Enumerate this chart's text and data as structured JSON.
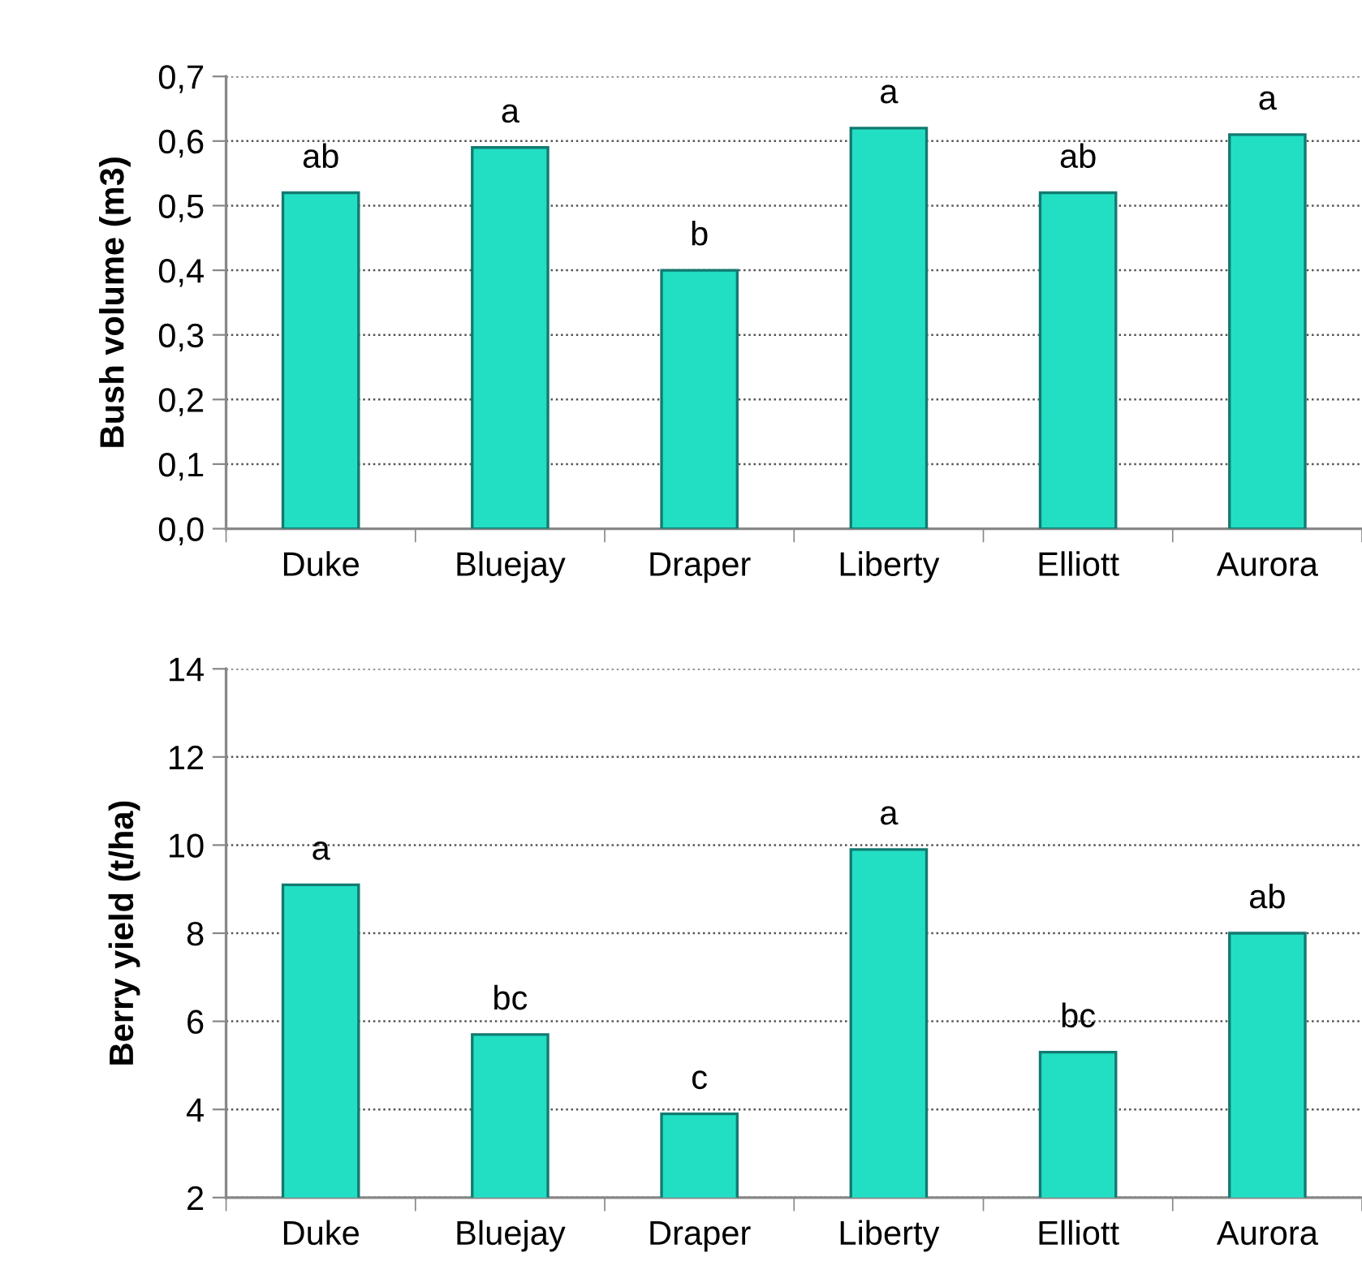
{
  "chart_data": [
    {
      "type": "bar",
      "ylabel": "Bush volume (m3)",
      "categories": [
        "Duke",
        "Bluejay",
        "Draper",
        "Liberty",
        "Elliott",
        "Aurora"
      ],
      "values": [
        0.52,
        0.59,
        0.4,
        0.62,
        0.52,
        0.61
      ],
      "color": "#22dfc4",
      "value_labels": [
        "ab",
        "a",
        "b",
        "a",
        "ab",
        "a"
      ],
      "ylim": [
        0,
        0.7
      ],
      "yticks": [
        {
          "value": 0,
          "label": "0,0"
        },
        {
          "value": 0.1,
          "label": "0,1"
        },
        {
          "value": 0.2,
          "label": "0,2"
        },
        {
          "value": 0.3,
          "label": "0,3"
        },
        {
          "value": 0.4,
          "label": "0,4"
        },
        {
          "value": 0.5,
          "label": "0,5"
        },
        {
          "value": 0.6,
          "label": "0,6"
        },
        {
          "value": 0.7,
          "label": "0,7"
        }
      ],
      "grid": "y",
      "legend": false
    },
    {
      "type": "bar",
      "ylabel": "Berry yield (t/ha)",
      "categories": [
        "Duke",
        "Bluejay",
        "Draper",
        "Liberty",
        "Elliott",
        "Aurora"
      ],
      "values": [
        9.1,
        5.7,
        3.9,
        9.9,
        5.3,
        8.0
      ],
      "color": "#22dfc4",
      "value_labels": [
        "a",
        "bc",
        "c",
        "a",
        "bc",
        "ab"
      ],
      "ylim": [
        2,
        14
      ],
      "yticks": [
        2,
        4,
        6,
        8,
        10,
        12,
        14
      ],
      "grid": "y",
      "legend": false
    }
  ]
}
